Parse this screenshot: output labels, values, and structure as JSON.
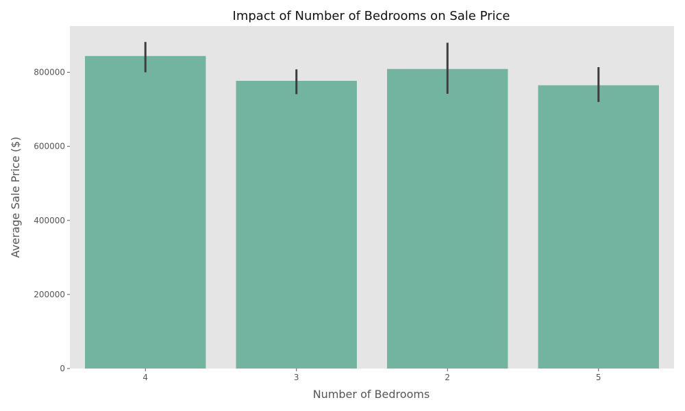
{
  "chart_data": {
    "type": "bar",
    "title": "Impact of Number of Bedrooms on Sale Price",
    "xlabel": "Number of Bedrooms",
    "ylabel": "Average Sale Price ($)",
    "categories": [
      "4",
      "3",
      "2",
      "5"
    ],
    "values": [
      844000,
      777000,
      809000,
      765000
    ],
    "error_low": [
      800000,
      741000,
      742000,
      720000
    ],
    "error_high": [
      882000,
      808000,
      880000,
      814000
    ],
    "yticks": [
      0,
      200000,
      400000,
      600000,
      800000
    ],
    "ytick_labels": [
      "0",
      "200000",
      "400000",
      "600000",
      "800000"
    ],
    "ylim": [
      0,
      925000
    ],
    "grid": false,
    "legend": "none",
    "colors": {
      "bar": "#73b4a0",
      "plot_background": "#e5e5e5",
      "error_bar": "#3d3d3d"
    }
  }
}
